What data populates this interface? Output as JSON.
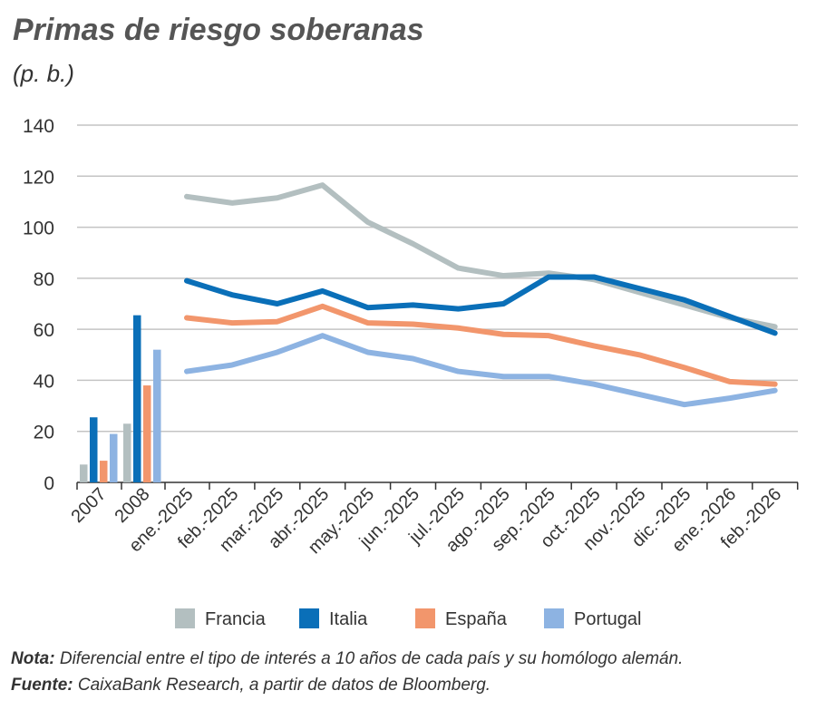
{
  "chart_data": {
    "type": "bar+line",
    "title": "Primas de riesgo soberanas",
    "subtitle": "(p. b.)",
    "ylim": [
      0,
      140
    ],
    "yticks": [
      0,
      20,
      40,
      60,
      80,
      100,
      120,
      140
    ],
    "bar_categories": [
      "2007",
      "2008"
    ],
    "line_categories": [
      "ene.-2025",
      "feb.-2025",
      "mar.-2025",
      "abr.-2025",
      "may.-2025",
      "jun.-2025",
      "jul.-2025",
      "ago.-2025",
      "sep.-2025",
      "oct.-2025",
      "nov.-2025",
      "dic.-2025",
      "ene.-2026",
      "feb.-2026"
    ],
    "series": [
      {
        "name": "Francia",
        "color": "#b3bfc0",
        "bars": [
          7,
          23
        ],
        "values": [
          112,
          109.5,
          111.5,
          116.5,
          102,
          93.5,
          84,
          81,
          82,
          79.5,
          74.5,
          69.5,
          64.5,
          61
        ]
      },
      {
        "name": "Italia",
        "color": "#0a6fb8",
        "bars": [
          25.5,
          65.5
        ],
        "values": [
          79,
          73.5,
          70,
          75,
          68.5,
          69.5,
          68,
          70,
          80.5,
          80.5,
          76,
          71.5,
          65,
          58.5
        ]
      },
      {
        "name": "España",
        "color": "#f2966c",
        "bars": [
          8.5,
          38
        ],
        "values": [
          64.5,
          62.5,
          63,
          69,
          62.5,
          62,
          60.5,
          58,
          57.5,
          53.5,
          50,
          45,
          39.5,
          38.5
        ]
      },
      {
        "name": "Portugal",
        "color": "#8db3e2",
        "bars": [
          19,
          52
        ],
        "values": [
          43.5,
          46,
          51,
          57.5,
          51,
          48.5,
          43.5,
          41.5,
          41.5,
          38.5,
          34.5,
          30.5,
          33,
          36
        ]
      }
    ],
    "legend": "bottom",
    "grid": true
  },
  "notes": {
    "nota_label": "Nota:",
    "nota_text": " Diferencial entre el tipo de interés a 10 años de cada país y su homólogo alemán.",
    "fuente_label": "Fuente:",
    "fuente_text": " CaixaBank Research, a partir de datos de Bloomberg."
  }
}
